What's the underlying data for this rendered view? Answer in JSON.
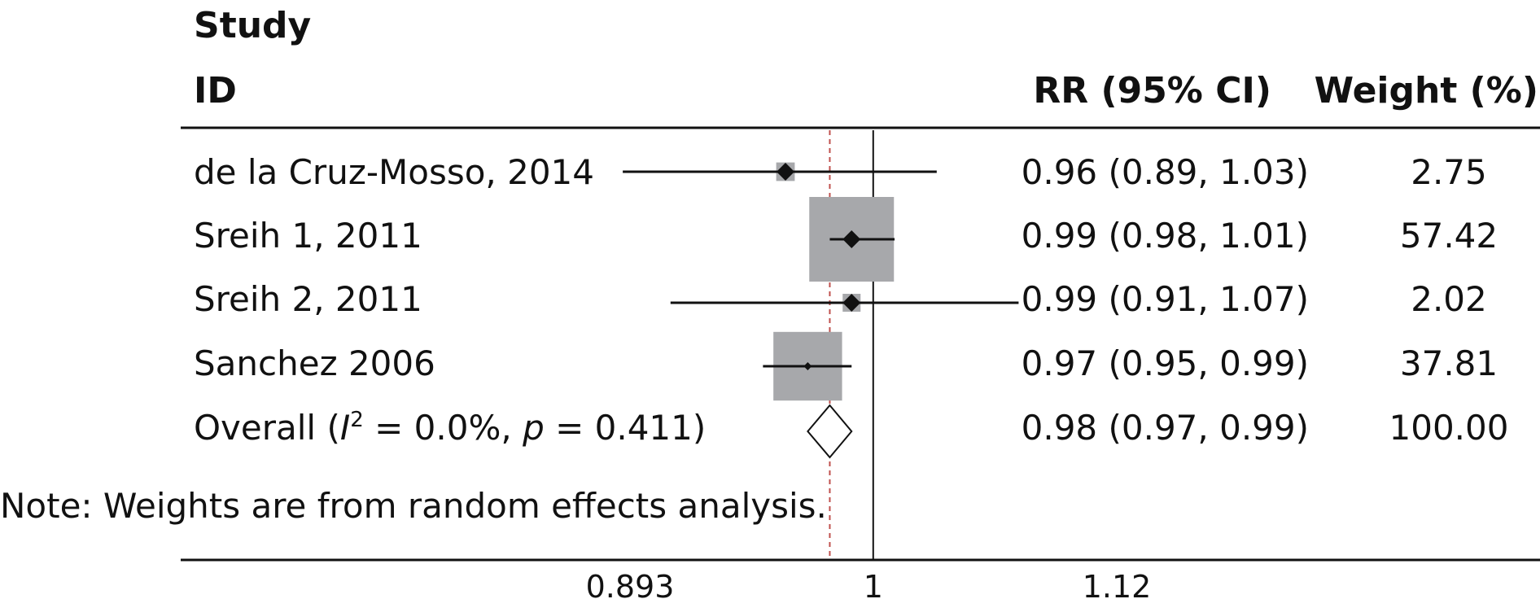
{
  "chart_data": {
    "type": "forest",
    "header": {
      "study_line1": "Study",
      "study_line2": "ID",
      "effect": "RR (95% CI)",
      "weight": "Weight (%)"
    },
    "studies": [
      {
        "label": "de la Cruz-Mosso, 2014",
        "rr": 0.96,
        "lo": 0.89,
        "hi": 1.03,
        "rr_text": "0.96 (0.89, 1.03)",
        "weight": 2.75,
        "weight_text": "2.75"
      },
      {
        "label": "Sreih 1, 2011",
        "rr": 0.99,
        "lo": 0.98,
        "hi": 1.01,
        "rr_text": "0.99 (0.98, 1.01)",
        "weight": 57.42,
        "weight_text": "57.42"
      },
      {
        "label": "Sreih 2, 2011",
        "rr": 0.99,
        "lo": 0.91,
        "hi": 1.07,
        "rr_text": "0.99 (0.91, 1.07)",
        "weight": 2.02,
        "weight_text": "2.02"
      },
      {
        "label": "Sanchez 2006",
        "rr": 0.97,
        "lo": 0.95,
        "hi": 0.99,
        "rr_text": "0.97 (0.95, 0.99)",
        "weight": 37.81,
        "weight_text": "37.81"
      }
    ],
    "overall": {
      "label_prefix": "Overall (",
      "label_i": "I",
      "label_sup": "2",
      "label_mid": " = 0.0%, ",
      "label_p": "p",
      "label_suffix": " = 0.411)",
      "rr": 0.98,
      "lo": 0.97,
      "hi": 0.99,
      "rr_text": "0.98 (0.97, 0.99)",
      "weight_text": "100.00"
    },
    "note": "Note: Weights are from random effects analysis.",
    "x_scale": "log",
    "x_ticks": [
      {
        "value": 0.893,
        "label": "0.893"
      },
      {
        "value": 1,
        "label": "1"
      },
      {
        "value": 1.12,
        "label": "1.12"
      }
    ],
    "null_line": 1,
    "colors": {
      "box": "#a7a8ab",
      "line": "#111111",
      "overall_line": "#c0504d"
    }
  }
}
